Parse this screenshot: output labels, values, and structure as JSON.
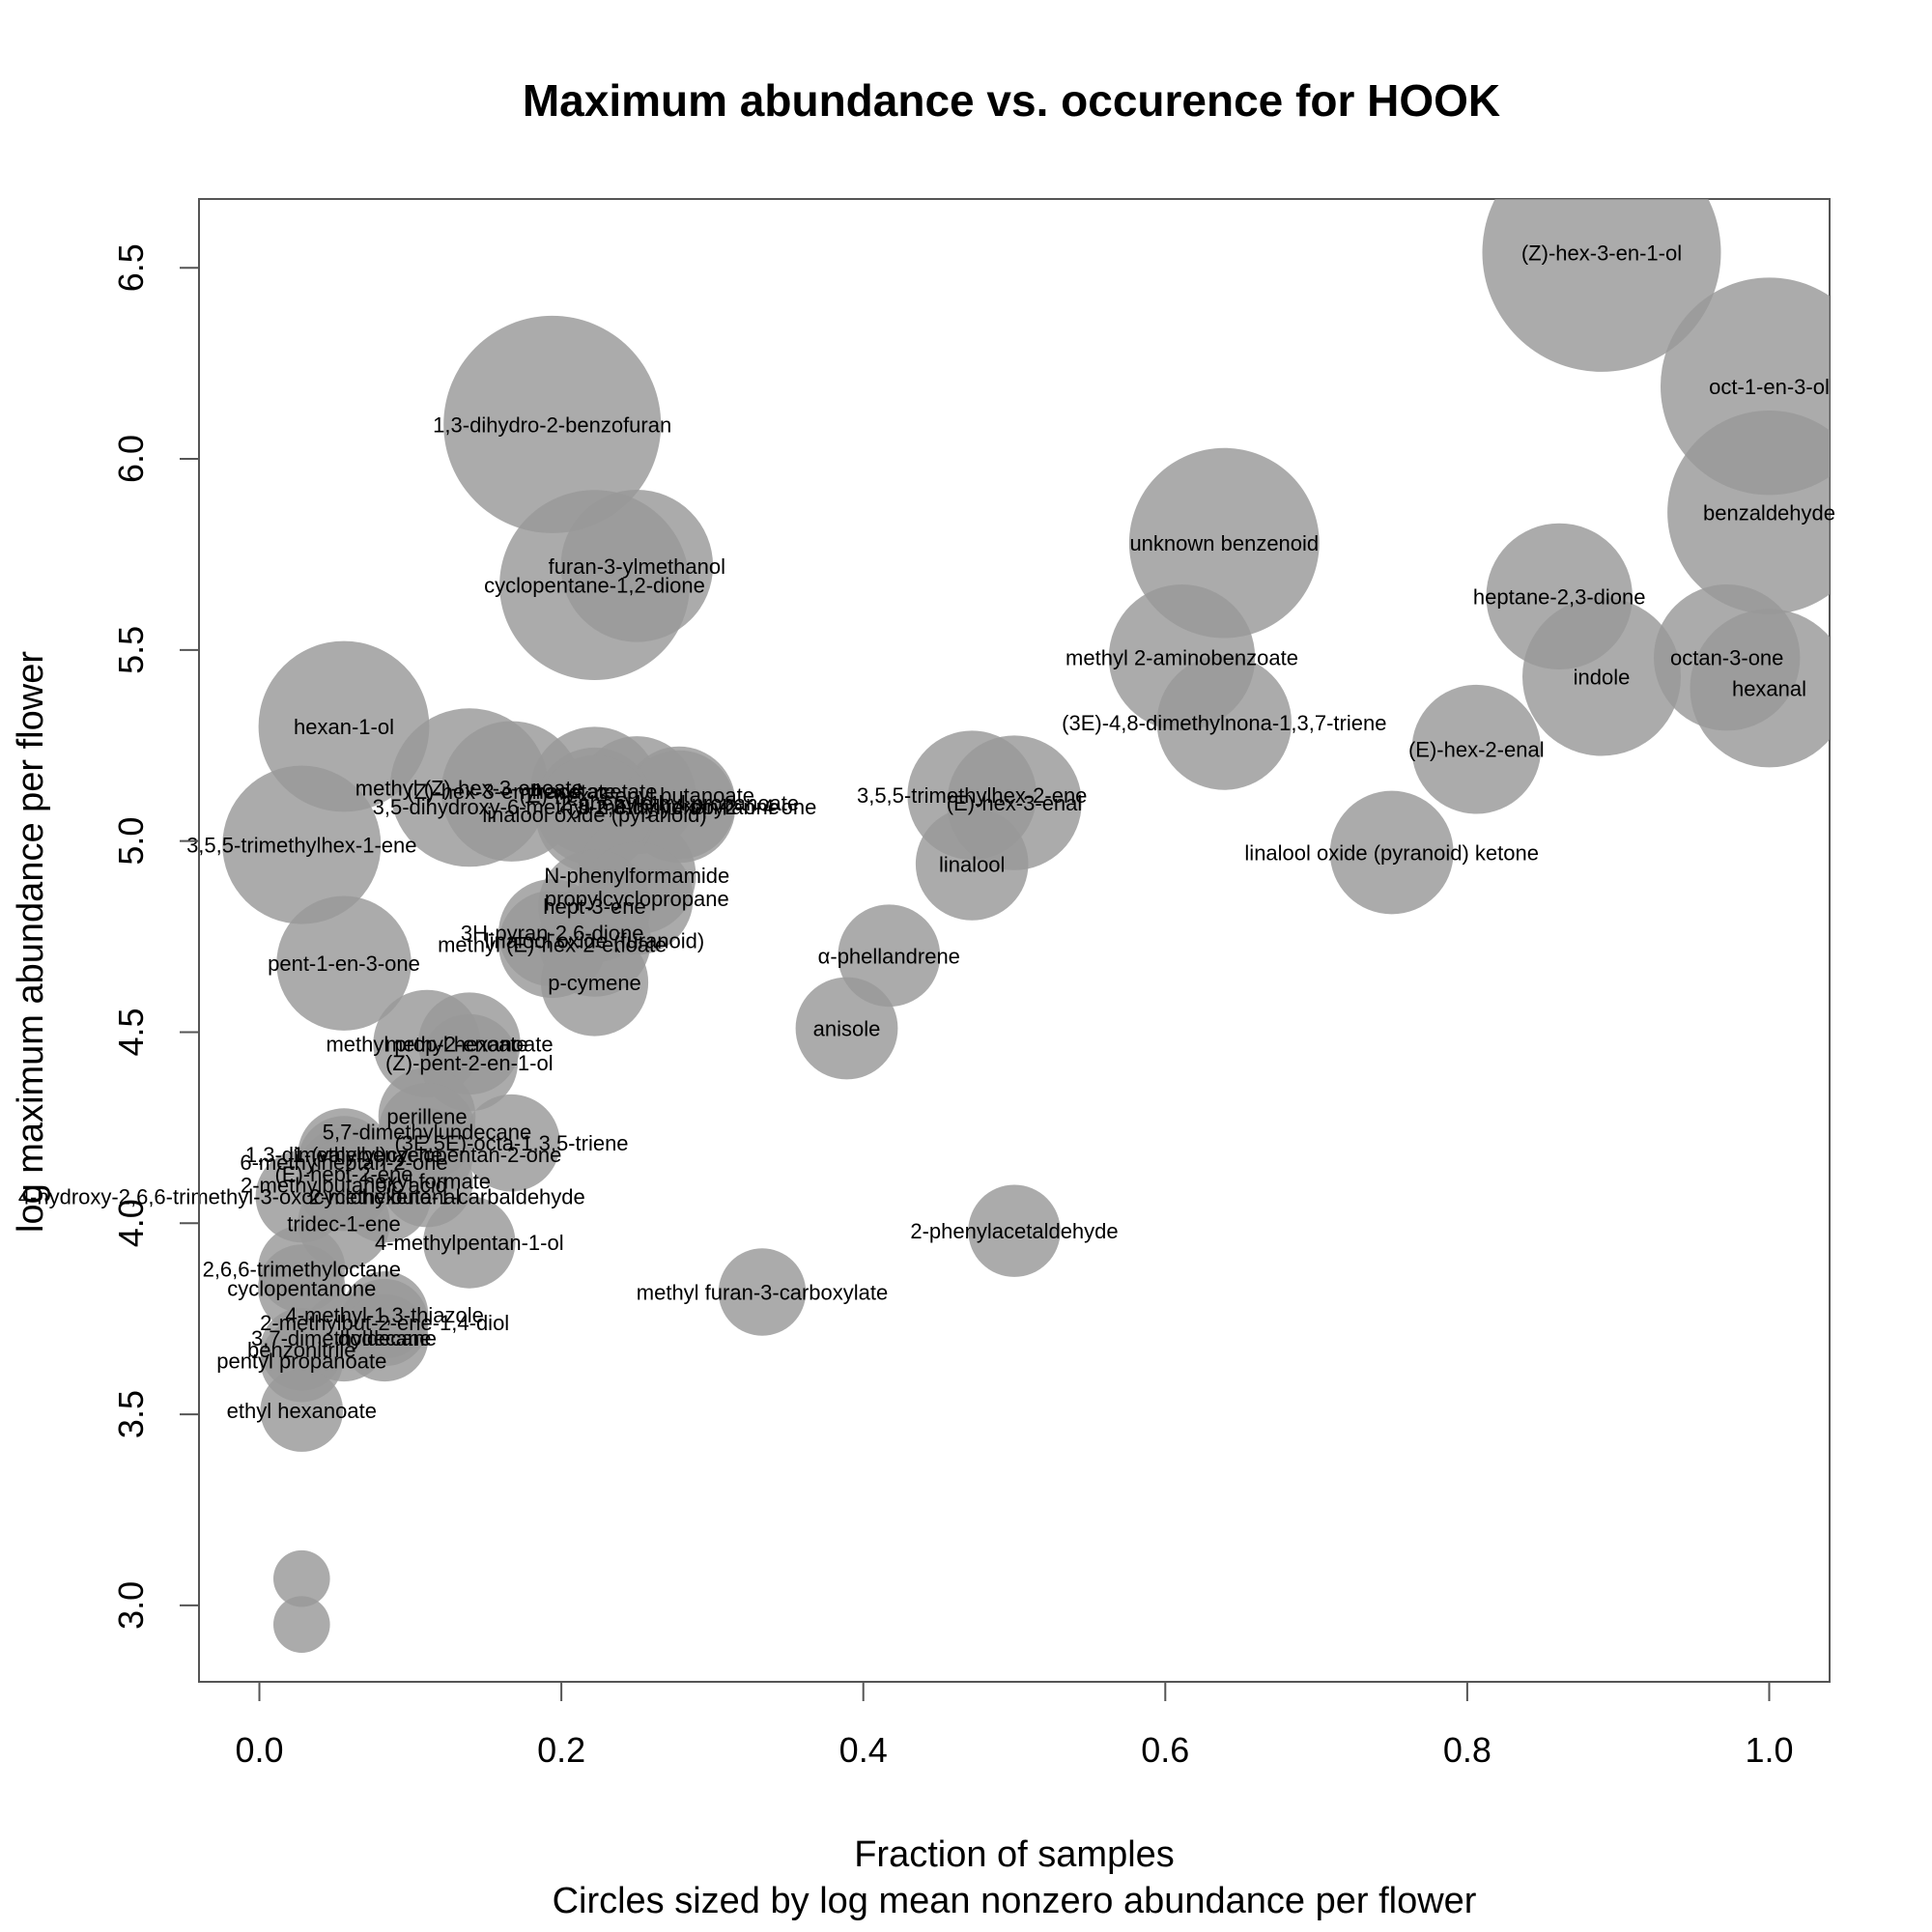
{
  "chart_data": {
    "type": "scatter",
    "title": "Maximum abundance vs. occurence for  HOOK",
    "xlabel": "Fraction of samples",
    "xlabel2": "Circles sized by log mean nonzero abundance per flower",
    "ylabel": "log maximum abundance per flower",
    "xlim": [
      -0.04,
      1.04
    ],
    "ylim": [
      2.8,
      6.68
    ],
    "xticks": [
      0.0,
      0.2,
      0.4,
      0.6,
      0.8,
      1.0
    ],
    "xtick_labels": [
      "0.0",
      "0.2",
      "0.4",
      "0.6",
      "0.8",
      "1.0"
    ],
    "yticks": [
      3.0,
      3.5,
      4.0,
      4.5,
      5.0,
      5.5,
      6.0,
      6.5
    ],
    "ytick_labels": [
      "3.0",
      "3.5",
      "4.0",
      "4.5",
      "5.0",
      "5.5",
      "6.0",
      "6.5"
    ],
    "grid": false,
    "bubble_color": "#999999",
    "points": [
      {
        "label": "(Z)-hex-3-en-1-ol",
        "x": 0.889,
        "y": 6.54,
        "size": 5.6
      },
      {
        "label": "oct-1-en-3-ol",
        "x": 1.0,
        "y": 6.19,
        "size": 5.3
      },
      {
        "label": "benzaldehyde",
        "x": 1.0,
        "y": 5.86,
        "size": 5.1
      },
      {
        "label": "1,3-dihydro-2-benzofuran",
        "x": 0.194,
        "y": 6.09,
        "size": 5.3
      },
      {
        "label": "unknown benzenoid",
        "x": 0.639,
        "y": 5.78,
        "size": 4.9
      },
      {
        "label": "furan-3-ylmethanol",
        "x": 0.25,
        "y": 5.72,
        "size": 4.3
      },
      {
        "label": "cyclopentane-1,2-dione",
        "x": 0.222,
        "y": 5.67,
        "size": 4.9
      },
      {
        "label": "heptane-2,3-dione",
        "x": 0.861,
        "y": 5.64,
        "size": 4.2
      },
      {
        "label": "octan-3-one",
        "x": 0.972,
        "y": 5.48,
        "size": 4.2
      },
      {
        "label": "methyl 2-aminobenzoate",
        "x": 0.611,
        "y": 5.48,
        "size": 4.2
      },
      {
        "label": "indole",
        "x": 0.889,
        "y": 5.43,
        "size": 4.4
      },
      {
        "label": "hexanal",
        "x": 1.0,
        "y": 5.4,
        "size": 4.4
      },
      {
        "label": "(3E)-4,8-dimethylnona-1,3,7-triene",
        "x": 0.639,
        "y": 5.31,
        "size": 4.0
      },
      {
        "label": "hexan-1-ol",
        "x": 0.056,
        "y": 5.3,
        "size": 4.6
      },
      {
        "label": "(E)-hex-2-enal",
        "x": 0.806,
        "y": 5.24,
        "size": 3.9
      },
      {
        "label": "methyl (Z)-hex-3-enoate",
        "x": 0.139,
        "y": 5.14,
        "size": 4.4
      },
      {
        "label": "(Z)-hex-3-enyl acetate",
        "x": 0.167,
        "y": 5.13,
        "size": 4.1
      },
      {
        "label": "hexyl acetate",
        "x": 0.222,
        "y": 5.13,
        "size": 3.9
      },
      {
        "label": "(E)-hex-3-enyl butanoate",
        "x": 0.25,
        "y": 5.12,
        "size": 3.7
      },
      {
        "label": "2-phenylethyl propanoate",
        "x": 0.278,
        "y": 5.1,
        "size": 3.6
      },
      {
        "label": "5-methylhexan-2-one",
        "x": 0.278,
        "y": 5.09,
        "size": 3.6
      },
      {
        "label": "3,5-dihydroxy-6-methyl-2,3-dihydropyran-4-one",
        "x": 0.222,
        "y": 5.09,
        "size": 3.7
      },
      {
        "label": "linalool oxide (pyranoid)",
        "x": 0.222,
        "y": 5.07,
        "size": 3.7
      },
      {
        "label": "3,5,5-trimethylhex-2-ene",
        "x": 0.472,
        "y": 5.12,
        "size": 3.9
      },
      {
        "label": "(E)-hex-3-enal",
        "x": 0.5,
        "y": 5.1,
        "size": 4.0
      },
      {
        "label": "3,5,5-trimethylhex-1-ene",
        "x": 0.028,
        "y": 4.99,
        "size": 4.4
      },
      {
        "label": "linalool oxide (pyranoid) ketone",
        "x": 0.75,
        "y": 4.97,
        "size": 3.8
      },
      {
        "label": "linalool",
        "x": 0.472,
        "y": 4.94,
        "size": 3.6
      },
      {
        "label": "N-phenylformamide",
        "x": 0.25,
        "y": 4.91,
        "size": 3.7
      },
      {
        "label": "propylcyclopropane",
        "x": 0.25,
        "y": 4.85,
        "size": 3.6
      },
      {
        "label": "hept-3-ene",
        "x": 0.222,
        "y": 4.83,
        "size": 3.6
      },
      {
        "label": "3H-pyran-2,6-dione",
        "x": 0.194,
        "y": 4.76,
        "size": 3.5
      },
      {
        "label": "linalool oxide (furanoid)",
        "x": 0.222,
        "y": 4.74,
        "size": 3.6
      },
      {
        "label": "methyl (E)-hex-2-enoate",
        "x": 0.194,
        "y": 4.73,
        "size": 3.5
      },
      {
        "label": "pent-1-en-3-one",
        "x": 0.056,
        "y": 4.68,
        "size": 4.0
      },
      {
        "label": "α-phellandrene",
        "x": 0.417,
        "y": 4.7,
        "size": 3.4
      },
      {
        "label": "p-cymene",
        "x": 0.222,
        "y": 4.63,
        "size": 3.5
      },
      {
        "label": "anisole",
        "x": 0.389,
        "y": 4.51,
        "size": 3.4
      },
      {
        "label": "methyl hexanoate",
        "x": 0.139,
        "y": 4.47,
        "size": 3.4
      },
      {
        "label": "methyl prop-2-enoate",
        "x": 0.111,
        "y": 4.47,
        "size": 3.5
      },
      {
        "label": "(Z)-pent-2-en-1-ol",
        "x": 0.139,
        "y": 4.42,
        "size": 3.3
      },
      {
        "label": "perillene",
        "x": 0.111,
        "y": 4.28,
        "size": 3.3
      },
      {
        "label": "5,7-dimethylundecane",
        "x": 0.111,
        "y": 4.24,
        "size": 3.3
      },
      {
        "label": "(3E,5E)-octa-1,3,5-triene",
        "x": 0.167,
        "y": 4.21,
        "size": 3.3
      },
      {
        "label": "1-(valeryl)cyclopentan-2-one",
        "x": 0.111,
        "y": 4.18,
        "size": 3.2
      },
      {
        "label": "1,3-dimethylbenzene",
        "x": 0.056,
        "y": 4.18,
        "size": 3.2
      },
      {
        "label": "6-methylheptan-2-one",
        "x": 0.056,
        "y": 4.16,
        "size": 3.2
      },
      {
        "label": "(E)-hept-2-ene",
        "x": 0.056,
        "y": 4.13,
        "size": 3.2
      },
      {
        "label": "hexyl formate",
        "x": 0.111,
        "y": 4.11,
        "size": 3.2
      },
      {
        "label": "2-methylbutanoic acid",
        "x": 0.056,
        "y": 4.1,
        "size": 3.2
      },
      {
        "label": "4-hydroxy-2,6,6-trimethyl-3-oxocyclohexene-1-carbaldehyde",
        "x": 0.028,
        "y": 4.07,
        "size": 3.2
      },
      {
        "label": "2-methylbutanal",
        "x": 0.083,
        "y": 4.07,
        "size": 3.2
      },
      {
        "label": "tridec-1-ene",
        "x": 0.056,
        "y": 4.0,
        "size": 3.2
      },
      {
        "label": "4-methylpentan-1-ol",
        "x": 0.139,
        "y": 3.95,
        "size": 3.2
      },
      {
        "label": "2-phenylacetaldehyde",
        "x": 0.5,
        "y": 3.98,
        "size": 3.2
      },
      {
        "label": "2,6,6-trimethyloctane",
        "x": 0.028,
        "y": 3.88,
        "size": 3.1
      },
      {
        "label": "methyl furan-3-carboxylate",
        "x": 0.333,
        "y": 3.82,
        "size": 3.1
      },
      {
        "label": "cyclopentanone",
        "x": 0.028,
        "y": 3.83,
        "size": 3.1
      },
      {
        "label": "4-methyl-1,3-thiazole",
        "x": 0.083,
        "y": 3.76,
        "size": 3.1
      },
      {
        "label": "2-methylbut-2-ene-1,4-diol",
        "x": 0.083,
        "y": 3.74,
        "size": 3.1
      },
      {
        "label": "3,7-dimethyldecane",
        "x": 0.056,
        "y": 3.7,
        "size": 3.1
      },
      {
        "label": "dodecane",
        "x": 0.083,
        "y": 3.7,
        "size": 3.1
      },
      {
        "label": "benzonitrile",
        "x": 0.028,
        "y": 3.67,
        "size": 3.0
      },
      {
        "label": "pentyl propanoate",
        "x": 0.028,
        "y": 3.64,
        "size": 3.0
      },
      {
        "label": "ethyl hexanoate",
        "x": 0.028,
        "y": 3.51,
        "size": 3.0
      },
      {
        "label": "",
        "x": 0.028,
        "y": 3.07,
        "size": 2.4
      },
      {
        "label": "",
        "x": 0.028,
        "y": 2.95,
        "size": 2.4
      }
    ]
  }
}
